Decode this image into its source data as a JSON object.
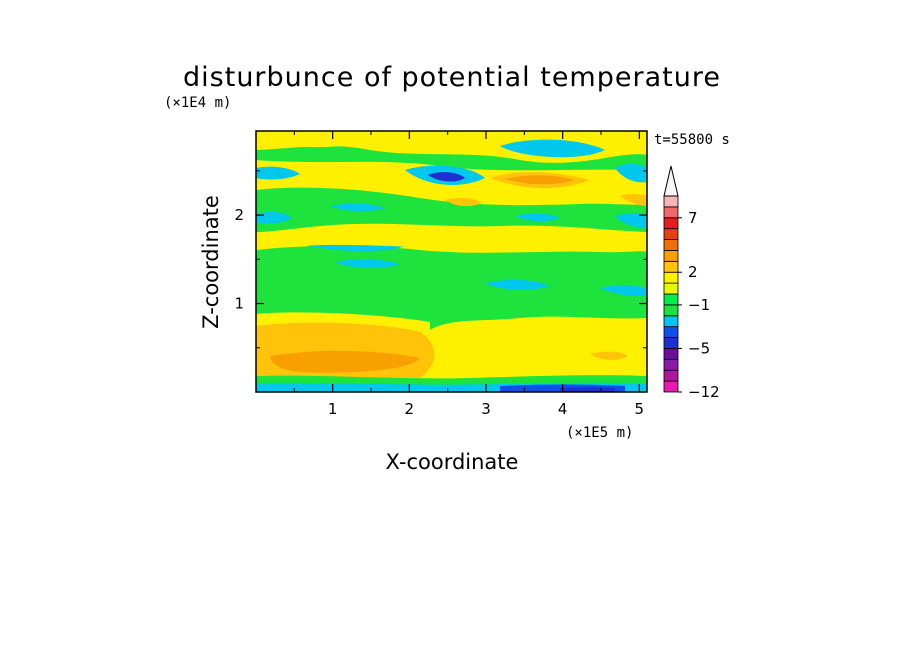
{
  "chart_data": {
    "type": "heatmap",
    "title": "disturbunce of potential temperature",
    "xlabel": "X-coordinate",
    "ylabel": "Z-coordinate",
    "x_unit": "(×1E5 m)",
    "y_unit": "(×1E4 m)",
    "time_label": "t=55800 s",
    "xlim": [
      0,
      5.1
    ],
    "ylim": [
      0,
      2.95
    ],
    "x_ticks": [
      1,
      2,
      3,
      4,
      5
    ],
    "y_ticks": [
      1,
      2
    ],
    "colorbar": {
      "levels": [
        -12,
        -10,
        -8,
        -6,
        -5,
        -4,
        -3,
        -2,
        -1,
        0,
        1,
        2,
        3,
        4,
        5,
        6,
        7,
        8
      ],
      "tick_labels": [
        "7",
        "2",
        "-1",
        "-5",
        "-12"
      ],
      "tick_values": [
        7,
        2,
        -1,
        -5,
        -12
      ],
      "colors": [
        "#e61ab2",
        "#b4139f",
        "#8a1aa8",
        "#6e0d9e",
        "#1f2fd1",
        "#1050e8",
        "#00c8ec",
        "#1ee33c",
        "#00ee4a",
        "#e8fa00",
        "#fff000",
        "#ffc30a",
        "#f8a000",
        "#f07008",
        "#e84010",
        "#e81c1c",
        "#f06868",
        "#f8b4b4"
      ],
      "top_triangle_color": "#f7f7f7"
    },
    "field_bands": [
      {
        "z": [
          0,
          0.04
        ],
        "value": -5
      },
      {
        "z": [
          0.04,
          0.1
        ],
        "value": -1
      },
      {
        "z": [
          0.1,
          0.35
        ],
        "value": 1
      },
      {
        "z": [
          0.35,
          0.9
        ],
        "value": 1
      },
      {
        "z": [
          0.9,
          1.65
        ],
        "value": 0
      },
      {
        "z": [
          1.65,
          2.0
        ],
        "value": 1
      },
      {
        "z": [
          2.0,
          2.4
        ],
        "value": 0
      },
      {
        "z": [
          2.4,
          2.95
        ],
        "value": 1
      }
    ]
  }
}
